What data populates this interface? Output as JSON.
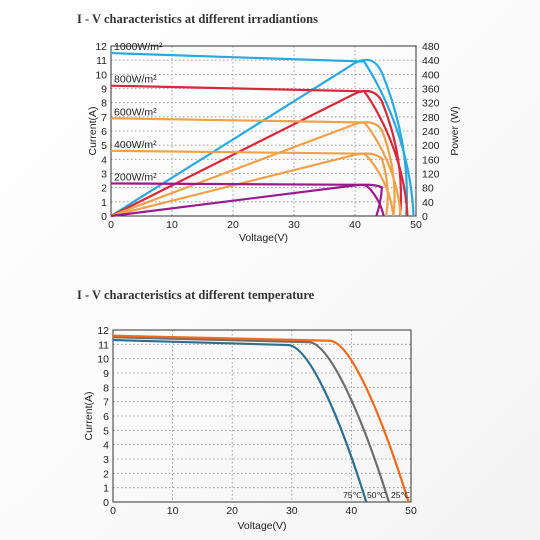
{
  "charts": {
    "irradiance": {
      "title": "I - V characteristics at different irradiantions"
    },
    "temperature": {
      "title": "I - V characteristics at different temperature"
    }
  },
  "chart_data": [
    {
      "type": "line",
      "title": "I - V characteristics at different irradiantions",
      "xlabel": "Voltage(V)",
      "ylabel": "Current(A)",
      "y2label": "Power (W)",
      "xlim": [
        0,
        50
      ],
      "ylim": [
        0,
        12
      ],
      "y2lim": [
        0,
        480
      ],
      "xticks": [
        0,
        10,
        20,
        30,
        40,
        50
      ],
      "yticks": [
        0,
        1,
        2,
        3,
        4,
        5,
        6,
        7,
        8,
        9,
        10,
        11,
        12
      ],
      "y2ticks": [
        0,
        40,
        80,
        120,
        160,
        200,
        240,
        280,
        320,
        360,
        400,
        440,
        480
      ],
      "grid": true,
      "series": [
        {
          "name": "1000W/m²",
          "color": "#2aa9e0",
          "isc": 11.5,
          "voc": 49.6,
          "imp": 10.9,
          "vmp": 41.5,
          "pmax": 450,
          "vpmax": 43.0
        },
        {
          "name": "800W/m²",
          "color": "#d8283c",
          "isc": 9.2,
          "voc": 48.6,
          "imp": 8.8,
          "vmp": 41.5,
          "pmax": 360,
          "vpmax": 43.0
        },
        {
          "name": "600W/m²",
          "color": "#f0a24a",
          "isc": 6.9,
          "voc": 47.5,
          "imp": 6.6,
          "vmp": 41.5,
          "pmax": 270,
          "vpmax": 43.0
        },
        {
          "name": "400W/m²",
          "color": "#f0a24a",
          "isc": 4.6,
          "voc": 46.3,
          "imp": 4.4,
          "vmp": 41.5,
          "pmax": 180,
          "vpmax": 43.0
        },
        {
          "name": "200W/m²",
          "color": "#9a1a8e",
          "isc": 2.3,
          "voc": 44.7,
          "imp": 2.2,
          "vmp": 41.5,
          "pmax": 90,
          "vpmax": 43.0
        }
      ]
    },
    {
      "type": "line",
      "title": "I - V characteristics at different temperature",
      "xlabel": "Voltage(V)",
      "ylabel": "Current(A)",
      "xlim": [
        0,
        50
      ],
      "ylim": [
        0,
        12
      ],
      "xticks": [
        0,
        10,
        20,
        30,
        40,
        50
      ],
      "yticks": [
        0,
        1,
        2,
        3,
        4,
        5,
        6,
        7,
        8,
        9,
        10,
        11,
        12
      ],
      "grid": true,
      "series": [
        {
          "name": "75℃",
          "color": "#2f6e8e",
          "isc": 11.3,
          "voc": 42.5,
          "knee": 29.5
        },
        {
          "name": "50℃",
          "color": "#6d6d6d",
          "isc": 11.5,
          "voc": 46.3,
          "knee": 33.0
        },
        {
          "name": "25℃",
          "color": "#ee6a1c",
          "isc": 11.6,
          "voc": 49.6,
          "knee": 36.5
        }
      ]
    }
  ]
}
